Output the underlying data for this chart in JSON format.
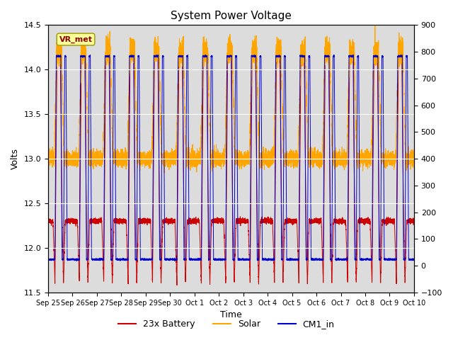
{
  "title": "System Power Voltage",
  "xlabel": "Time",
  "ylabel_left": "Volts",
  "ylim_left": [
    11.5,
    14.5
  ],
  "ylim_right": [
    -100,
    900
  ],
  "bg_color": "#dcdcdc",
  "fig_color": "#ffffff",
  "legend_labels": [
    "23x Battery",
    "Solar",
    "CM1_in"
  ],
  "legend_colors": [
    "#cc0000",
    "#ffa500",
    "#0000cc"
  ],
  "annotation_text": "VR_met",
  "annotation_color": "#8b0000",
  "annotation_bg": "#ffff99",
  "xtick_labels": [
    "Sep 25",
    "Sep 26",
    "Sep 27",
    "Sep 28",
    "Sep 29",
    "Sep 30",
    "Oct 1",
    "Oct 2",
    "Oct 3",
    "Oct 4",
    "Oct 5",
    "Oct 6",
    "Oct 7",
    "Oct 8",
    "Oct 9",
    "Oct 10"
  ],
  "ytick_left": [
    11.5,
    12.0,
    12.5,
    13.0,
    13.5,
    14.0,
    14.5
  ],
  "ytick_right": [
    -100,
    0,
    100,
    200,
    300,
    400,
    500,
    600,
    700,
    800,
    900
  ],
  "num_days": 15,
  "points_per_day": 480
}
